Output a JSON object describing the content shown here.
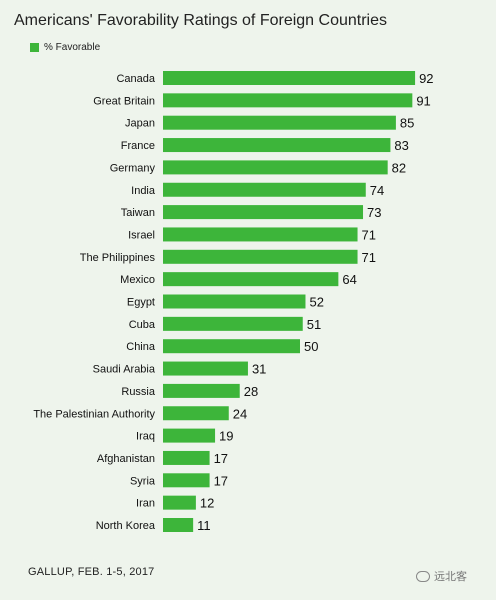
{
  "chart_data": {
    "type": "bar",
    "orientation": "horizontal",
    "title": "Americans' Favorability Ratings of Foreign Countries",
    "legend": [
      "% Favorable"
    ],
    "categories": [
      "Canada",
      "Great Britain",
      "Japan",
      "France",
      "Germany",
      "India",
      "Taiwan",
      "Israel",
      "The Philippines",
      "Mexico",
      "Egypt",
      "Cuba",
      "China",
      "Saudi Arabia",
      "Russia",
      "The Palestinian Authority",
      "Iraq",
      "Afghanistan",
      "Syria",
      "Iran",
      "North Korea"
    ],
    "series": [
      {
        "name": "% Favorable",
        "values": [
          92,
          91,
          85,
          83,
          82,
          74,
          73,
          71,
          71,
          64,
          52,
          51,
          50,
          31,
          28,
          24,
          19,
          17,
          17,
          12,
          11
        ]
      }
    ],
    "xlim": [
      0,
      100
    ],
    "grid": false,
    "legend_position": "top-left",
    "colors": {
      "bar": "#3db53a"
    }
  },
  "source": "GALLUP, FEB. 1-5, 2017",
  "watermark": "远北客"
}
